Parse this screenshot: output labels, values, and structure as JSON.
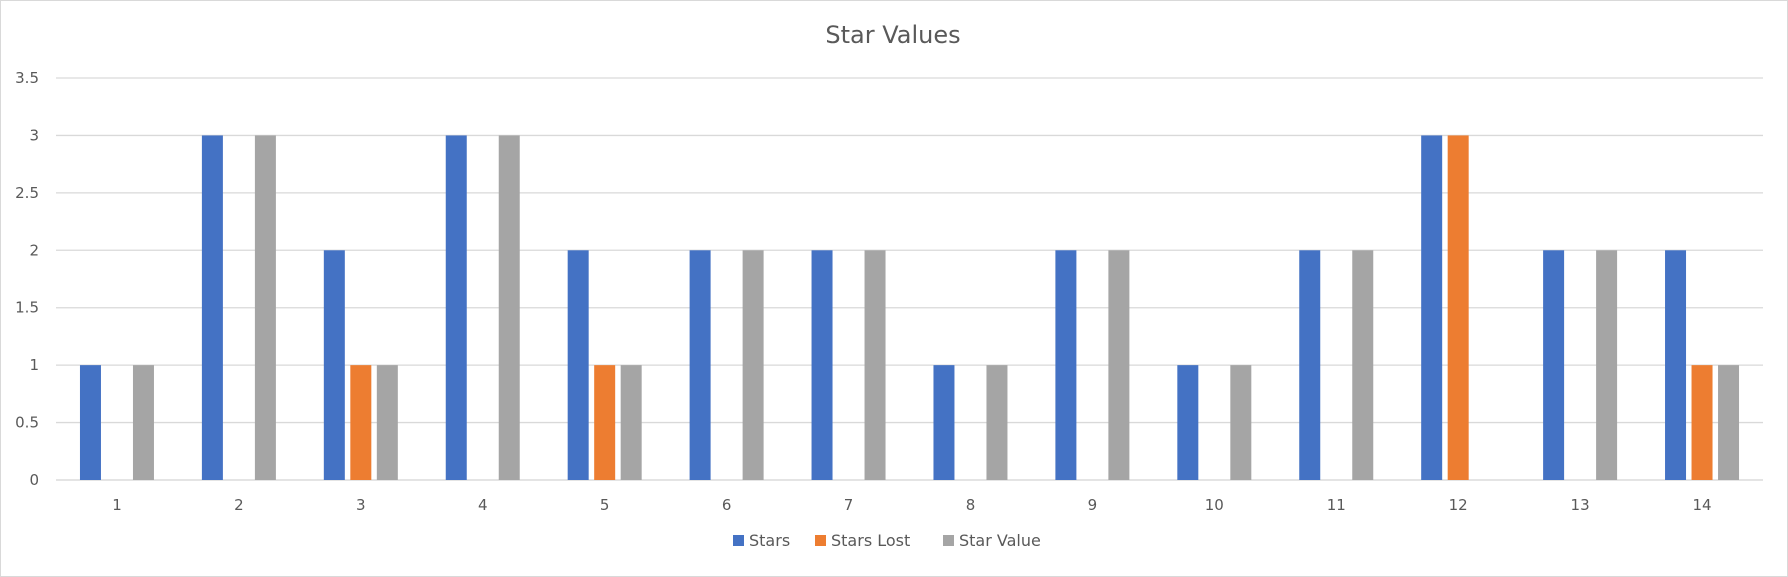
{
  "chart_data": {
    "type": "bar",
    "title": "Star Values",
    "xlabel": "",
    "ylabel": "",
    "categories": [
      "1",
      "2",
      "3",
      "4",
      "5",
      "6",
      "7",
      "8",
      "9",
      "10",
      "11",
      "12",
      "13",
      "14"
    ],
    "series": [
      {
        "name": "Stars",
        "color": "#4472C4",
        "values": [
          1,
          3,
          2,
          3,
          2,
          2,
          2,
          1,
          2,
          1,
          2,
          3,
          2,
          2
        ]
      },
      {
        "name": "Stars Lost",
        "color": "#ED7D31",
        "values": [
          0,
          0,
          1,
          0,
          1,
          0,
          0,
          0,
          0,
          0,
          0,
          3,
          0,
          1
        ]
      },
      {
        "name": "Star Value",
        "color": "#A5A5A5",
        "values": [
          1,
          3,
          1,
          3,
          1,
          2,
          2,
          1,
          2,
          1,
          2,
          0,
          2,
          1
        ]
      }
    ],
    "ylim": [
      0,
      3.5
    ],
    "yticks": [
      "0",
      "0.5",
      "1",
      "1.5",
      "2",
      "2.5",
      "3",
      "3.5"
    ],
    "grid": true,
    "legend_position": "bottom"
  }
}
